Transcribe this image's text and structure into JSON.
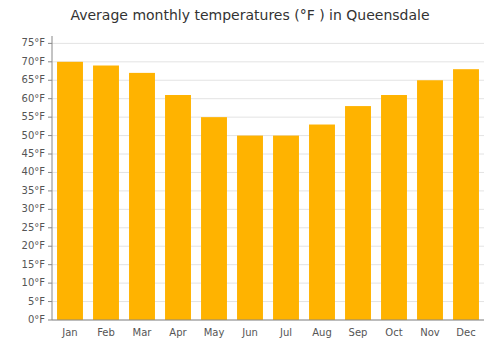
{
  "chart_data": {
    "type": "bar",
    "title": "Average monthly temperatures (°F ) in Queensdale",
    "categories": [
      "Jan",
      "Feb",
      "Mar",
      "Apr",
      "May",
      "Jun",
      "Jul",
      "Aug",
      "Sep",
      "Oct",
      "Nov",
      "Dec"
    ],
    "values": [
      70,
      69,
      67,
      61,
      55,
      50,
      50,
      53,
      58,
      61,
      65,
      68
    ],
    "color": "#FFB300",
    "ylim": [
      0,
      77
    ],
    "yticks": [
      {
        "value": 0,
        "label": "0°F"
      },
      {
        "value": 5,
        "label": "5°F"
      },
      {
        "value": 10,
        "label": "10°F"
      },
      {
        "value": 15,
        "label": "15°F"
      },
      {
        "value": 20,
        "label": "20°F"
      },
      {
        "value": 25,
        "label": "25°F"
      },
      {
        "value": 30,
        "label": "30°F"
      },
      {
        "value": 35,
        "label": "35°F"
      },
      {
        "value": 40,
        "label": "40°F"
      },
      {
        "value": 45,
        "label": "45°F"
      },
      {
        "value": 50,
        "label": "50°F"
      },
      {
        "value": 55,
        "label": "55°F"
      },
      {
        "value": 60,
        "label": "60°F"
      },
      {
        "value": 65,
        "label": "65°F"
      },
      {
        "value": 70,
        "label": "70°F"
      },
      {
        "value": 75,
        "label": "75°F"
      }
    ],
    "grid": true
  }
}
